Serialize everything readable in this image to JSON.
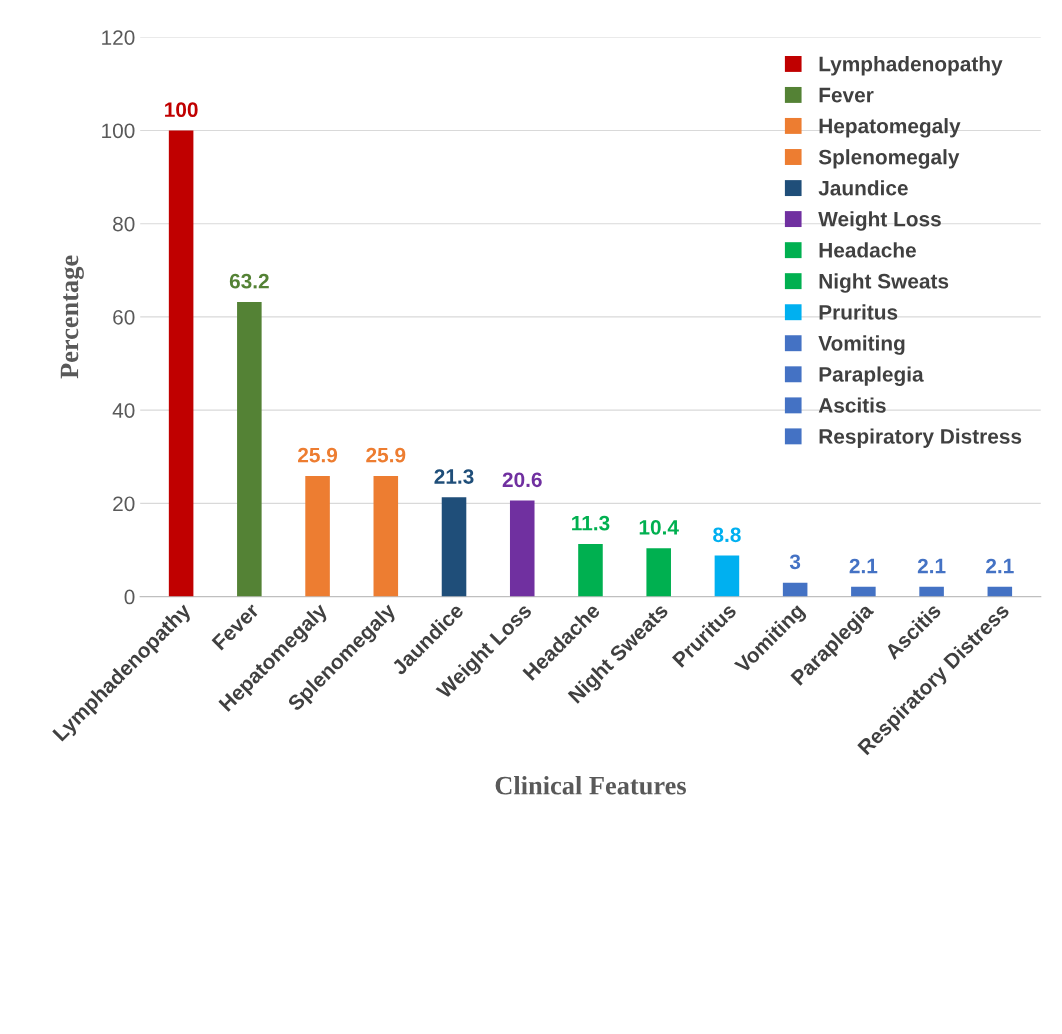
{
  "chart_data": {
    "type": "bar",
    "xlabel": "Clinical Features",
    "ylabel": "Percentage",
    "categories": [
      "Lymphadenopathy",
      "Fever",
      "Hepatomegaly",
      "Splenomegaly",
      "Jaundice",
      "Weight Loss",
      "Headache",
      "Night Sweats",
      "Pruritus",
      "Vomiting",
      "Paraplegia",
      "Ascitis",
      "Respiratory Distress"
    ],
    "series": [
      {
        "name": "Lymphadenopathy",
        "color": "#c00000",
        "values": [
          100,
          null,
          null,
          null,
          null,
          null,
          null,
          null,
          null,
          null,
          null,
          null,
          null
        ]
      },
      {
        "name": "Fever",
        "color": "#548235",
        "values": [
          null,
          63.2,
          null,
          null,
          null,
          null,
          null,
          null,
          null,
          null,
          null,
          null,
          null
        ]
      },
      {
        "name": "Hepatomegaly",
        "color": "#ed7d31",
        "values": [
          null,
          null,
          25.9,
          null,
          null,
          null,
          null,
          null,
          null,
          null,
          null,
          null,
          null
        ]
      },
      {
        "name": "Splenomegaly",
        "color": "#ed7d31",
        "values": [
          null,
          null,
          null,
          25.9,
          null,
          null,
          null,
          null,
          null,
          null,
          null,
          null,
          null
        ]
      },
      {
        "name": "Jaundice",
        "color": "#1f4e79",
        "values": [
          null,
          null,
          null,
          null,
          21.3,
          null,
          null,
          null,
          null,
          null,
          null,
          null,
          null
        ]
      },
      {
        "name": "Weight Loss",
        "color": "#7030a0",
        "values": [
          null,
          null,
          null,
          null,
          null,
          20.6,
          null,
          null,
          null,
          null,
          null,
          null,
          null
        ]
      },
      {
        "name": "Headache",
        "color": "#00b050",
        "values": [
          null,
          null,
          null,
          null,
          null,
          null,
          11.3,
          null,
          null,
          null,
          null,
          null,
          null
        ]
      },
      {
        "name": "Night Sweats",
        "color": "#00b050",
        "values": [
          null,
          null,
          null,
          null,
          null,
          null,
          null,
          10.4,
          null,
          null,
          null,
          null,
          null
        ]
      },
      {
        "name": "Pruritus",
        "color": "#00b0f0",
        "values": [
          null,
          null,
          null,
          null,
          null,
          null,
          null,
          null,
          8.8,
          null,
          null,
          null,
          null
        ]
      },
      {
        "name": "Vomiting",
        "color": "#4472c4",
        "values": [
          null,
          null,
          null,
          null,
          null,
          null,
          null,
          null,
          null,
          3,
          null,
          null,
          null
        ]
      },
      {
        "name": "Paraplegia",
        "color": "#4472c4",
        "values": [
          null,
          null,
          null,
          null,
          null,
          null,
          null,
          null,
          null,
          null,
          2.1,
          null,
          null
        ]
      },
      {
        "name": "Ascitis",
        "color": "#4472c4",
        "values": [
          null,
          null,
          null,
          null,
          null,
          null,
          null,
          null,
          null,
          null,
          null,
          2.1,
          null
        ]
      },
      {
        "name": "Respiratory Distress",
        "color": "#4472c4",
        "values": [
          null,
          null,
          null,
          null,
          null,
          null,
          null,
          null,
          null,
          null,
          null,
          null,
          2.1
        ]
      }
    ],
    "ylim": [
      0,
      120
    ],
    "yticks": [
      0,
      20,
      40,
      60,
      80,
      100,
      120
    ],
    "grid": "y",
    "legend": "top right",
    "data_labels": true
  }
}
